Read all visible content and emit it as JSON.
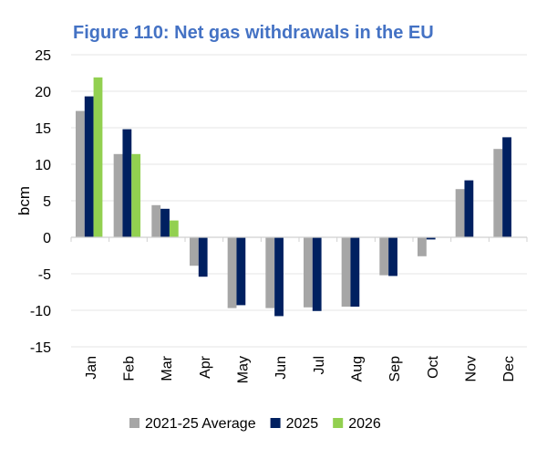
{
  "chart_data": {
    "type": "bar",
    "title": "Figure 110: Net gas withdrawals in the EU",
    "ylabel": "bcm",
    "xlabel": "",
    "ylim": [
      -15,
      25
    ],
    "yticks": [
      -15,
      -10,
      -5,
      0,
      5,
      10,
      15,
      20,
      25
    ],
    "grid": true,
    "legend_position": "bottom",
    "categories": [
      "Jan",
      "Feb",
      "Mar",
      "Apr",
      "May",
      "Jun",
      "Jul",
      "Aug",
      "Sep",
      "Oct",
      "Nov",
      "Dec"
    ],
    "series": [
      {
        "name": "2021-25 Average",
        "color": "#a6a6a6",
        "values": [
          17.3,
          11.4,
          4.4,
          -3.9,
          -9.7,
          -9.7,
          -9.6,
          -9.5,
          -5.2,
          -2.6,
          6.6,
          12.1
        ]
      },
      {
        "name": "2025",
        "color": "#002060",
        "values": [
          19.3,
          14.8,
          3.9,
          -5.4,
          -9.3,
          -10.8,
          -10.1,
          -9.5,
          -5.3,
          -0.3,
          7.8,
          13.7
        ]
      },
      {
        "name": "2026",
        "color": "#92d050",
        "values": [
          21.9,
          11.4,
          2.3,
          null,
          null,
          null,
          null,
          null,
          null,
          null,
          null,
          null
        ]
      }
    ],
    "title_color": "#4472c4"
  }
}
